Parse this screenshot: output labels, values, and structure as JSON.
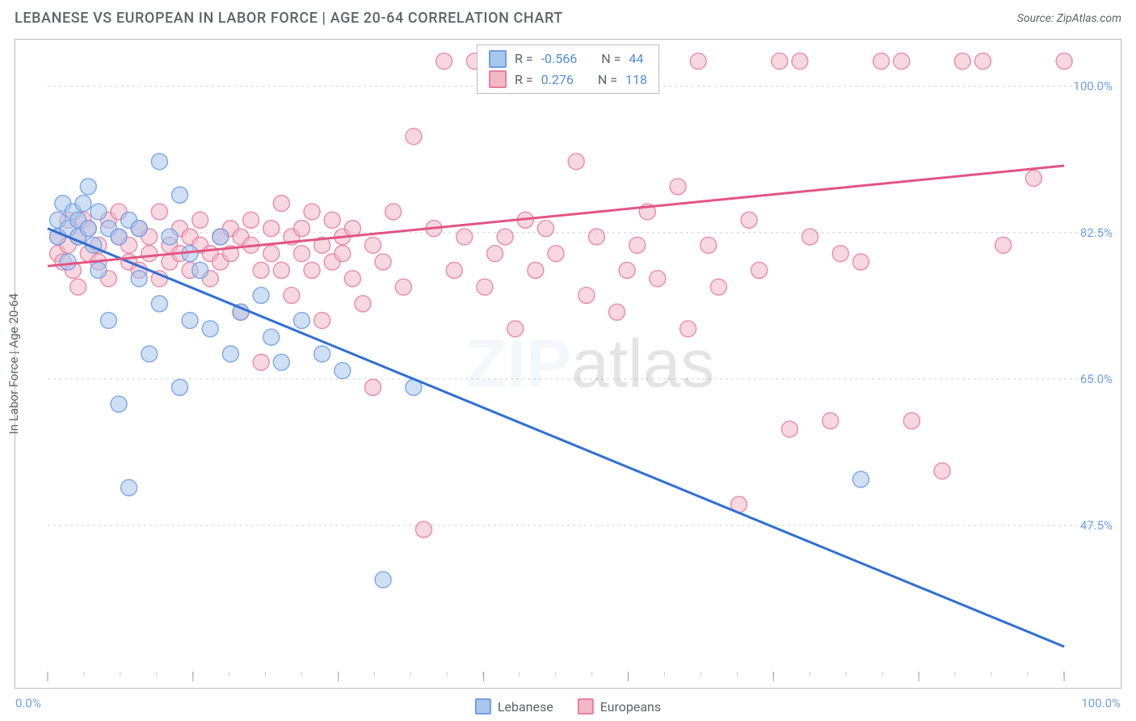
{
  "header": {
    "title": "LEBANESE VS EUROPEAN IN LABOR FORCE | AGE 20-64 CORRELATION CHART",
    "source_label": "Source:",
    "source_name": "ZipAtlas.com"
  },
  "ylabel": "In Labor Force | Age 20-64",
  "watermark": {
    "bold": "ZIP",
    "rest": "atlas"
  },
  "chart": {
    "type": "scatter",
    "background_color": "#ffffff",
    "border_color": "#bdbdbd",
    "grid_color": "#cfcfcf",
    "tick_color": "#9e9e9e",
    "axis_label_color": "#6f9fe8",
    "xlim": [
      0,
      100
    ],
    "ylim": [
      30,
      105
    ],
    "x_axis_labels": {
      "min": "0.0%",
      "max": "100.0%"
    },
    "y_ticks": [
      47.5,
      65.0,
      82.5,
      100.0
    ],
    "y_tick_labels": [
      "47.5%",
      "65.0%",
      "82.5%",
      "100.0%"
    ],
    "x_ticks_major": [
      0,
      14.3,
      28.6,
      42.9,
      57.1,
      71.4,
      85.7,
      100
    ],
    "x_ticks_minor_step": 3.57,
    "marker_radius": 10,
    "marker_opacity": 0.55,
    "marker_stroke_opacity": 0.85,
    "series": [
      {
        "name": "Lebanese",
        "color_fill": "#a7c7ed",
        "color_stroke": "#6f9fe8",
        "trend_color": "#2e6fd6",
        "R": "-0.566",
        "N": "44",
        "trend": {
          "x1": 0,
          "y1": 83,
          "x2": 100,
          "y2": 33
        },
        "points": [
          [
            1,
            84
          ],
          [
            1,
            82
          ],
          [
            1.5,
            86
          ],
          [
            2,
            83
          ],
          [
            2,
            79
          ],
          [
            2.5,
            85
          ],
          [
            3,
            82
          ],
          [
            3,
            84
          ],
          [
            3.5,
            86
          ],
          [
            4,
            83
          ],
          [
            4,
            88
          ],
          [
            4.5,
            81
          ],
          [
            5,
            85
          ],
          [
            5,
            78
          ],
          [
            6,
            83
          ],
          [
            6,
            72
          ],
          [
            7,
            82
          ],
          [
            7,
            62
          ],
          [
            8,
            84
          ],
          [
            8,
            52
          ],
          [
            9,
            77
          ],
          [
            9,
            83
          ],
          [
            10,
            68
          ],
          [
            11,
            91
          ],
          [
            11,
            74
          ],
          [
            12,
            82
          ],
          [
            13,
            87
          ],
          [
            13,
            64
          ],
          [
            14,
            80
          ],
          [
            14,
            72
          ],
          [
            15,
            78
          ],
          [
            16,
            71
          ],
          [
            17,
            82
          ],
          [
            18,
            68
          ],
          [
            19,
            73
          ],
          [
            21,
            75
          ],
          [
            22,
            70
          ],
          [
            23,
            67
          ],
          [
            25,
            72
          ],
          [
            27,
            68
          ],
          [
            29,
            66
          ],
          [
            33,
            41
          ],
          [
            36,
            64
          ],
          [
            80,
            53
          ]
        ]
      },
      {
        "name": "Europeans",
        "color_fill": "#f3b8c6",
        "color_stroke": "#e97fa0",
        "trend_color": "#e25582",
        "R": "0.276",
        "N": "118",
        "trend": {
          "x1": 0,
          "y1": 78.5,
          "x2": 100,
          "y2": 90.5
        },
        "points": [
          [
            1,
            80
          ],
          [
            1,
            82
          ],
          [
            1.5,
            79
          ],
          [
            2,
            81
          ],
          [
            2,
            84
          ],
          [
            2.5,
            78
          ],
          [
            3,
            82
          ],
          [
            3,
            76
          ],
          [
            3.5,
            84
          ],
          [
            4,
            80
          ],
          [
            4,
            83
          ],
          [
            5,
            79
          ],
          [
            5,
            81
          ],
          [
            6,
            84
          ],
          [
            6,
            77
          ],
          [
            7,
            82
          ],
          [
            7,
            85
          ],
          [
            8,
            79
          ],
          [
            8,
            81
          ],
          [
            9,
            83
          ],
          [
            9,
            78
          ],
          [
            10,
            82
          ],
          [
            10,
            80
          ],
          [
            11,
            85
          ],
          [
            11,
            77
          ],
          [
            12,
            81
          ],
          [
            12,
            79
          ],
          [
            13,
            83
          ],
          [
            13,
            80
          ],
          [
            14,
            82
          ],
          [
            14,
            78
          ],
          [
            15,
            81
          ],
          [
            15,
            84
          ],
          [
            16,
            80
          ],
          [
            16,
            77
          ],
          [
            17,
            82
          ],
          [
            17,
            79
          ],
          [
            18,
            83
          ],
          [
            18,
            80
          ],
          [
            19,
            73
          ],
          [
            19,
            82
          ],
          [
            20,
            81
          ],
          [
            20,
            84
          ],
          [
            21,
            78
          ],
          [
            21,
            67
          ],
          [
            22,
            83
          ],
          [
            22,
            80
          ],
          [
            23,
            86
          ],
          [
            23,
            78
          ],
          [
            24,
            82
          ],
          [
            24,
            75
          ],
          [
            25,
            83
          ],
          [
            25,
            80
          ],
          [
            26,
            85
          ],
          [
            26,
            78
          ],
          [
            27,
            81
          ],
          [
            27,
            72
          ],
          [
            28,
            84
          ],
          [
            28,
            79
          ],
          [
            29,
            82
          ],
          [
            29,
            80
          ],
          [
            30,
            77
          ],
          [
            30,
            83
          ],
          [
            31,
            74
          ],
          [
            32,
            81
          ],
          [
            32,
            64
          ],
          [
            33,
            79
          ],
          [
            34,
            85
          ],
          [
            35,
            76
          ],
          [
            36,
            94
          ],
          [
            37,
            47
          ],
          [
            38,
            83
          ],
          [
            39,
            103
          ],
          [
            40,
            78
          ],
          [
            41,
            82
          ],
          [
            42,
            103
          ],
          [
            43,
            76
          ],
          [
            44,
            80
          ],
          [
            45,
            82
          ],
          [
            46,
            71
          ],
          [
            47,
            84
          ],
          [
            48,
            78
          ],
          [
            49,
            83
          ],
          [
            50,
            80
          ],
          [
            51,
            103
          ],
          [
            52,
            91
          ],
          [
            53,
            75
          ],
          [
            54,
            82
          ],
          [
            55,
            103
          ],
          [
            56,
            73
          ],
          [
            57,
            78
          ],
          [
            58,
            81
          ],
          [
            59,
            85
          ],
          [
            60,
            77
          ],
          [
            62,
            88
          ],
          [
            63,
            71
          ],
          [
            64,
            103
          ],
          [
            65,
            81
          ],
          [
            66,
            76
          ],
          [
            68,
            50
          ],
          [
            69,
            84
          ],
          [
            70,
            78
          ],
          [
            72,
            103
          ],
          [
            73,
            59
          ],
          [
            74,
            103
          ],
          [
            75,
            82
          ],
          [
            77,
            60
          ],
          [
            78,
            80
          ],
          [
            80,
            79
          ],
          [
            82,
            103
          ],
          [
            84,
            103
          ],
          [
            85,
            60
          ],
          [
            88,
            54
          ],
          [
            90,
            103
          ],
          [
            92,
            103
          ],
          [
            94,
            81
          ],
          [
            97,
            89
          ],
          [
            100,
            103
          ]
        ]
      }
    ]
  },
  "legend_top": {
    "R_label": "R =",
    "N_label": "N ="
  },
  "legend_bottom": {
    "items": [
      "Lebanese",
      "Europeans"
    ]
  }
}
